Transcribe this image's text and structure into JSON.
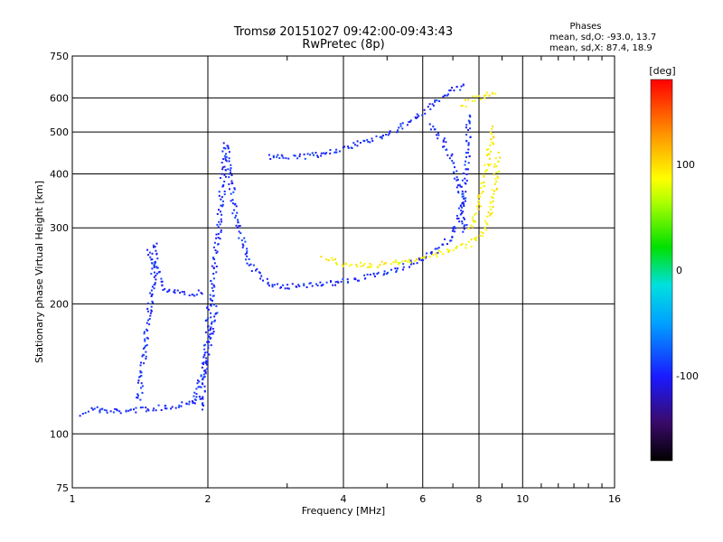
{
  "chart_data": {
    "type": "scatter",
    "title": "Tromsø 20151027 09:42:00-09:43:43",
    "subtitle": "RwPretec (8p)",
    "xlabel": "Frequency [MHz]",
    "ylabel": "Stationary phase Virtual Height [km]",
    "x_scale": "log",
    "y_scale": "log",
    "xlim": [
      1,
      16
    ],
    "ylim": [
      75,
      750
    ],
    "x_ticks": [
      1,
      2,
      4,
      6,
      8,
      10,
      16
    ],
    "x_tick_labels": [
      "1",
      "2",
      "4",
      "6",
      "8",
      "10",
      "16"
    ],
    "y_ticks": [
      75,
      100,
      200,
      300,
      400,
      500,
      600,
      750
    ],
    "y_tick_labels": [
      "75",
      "100",
      "200",
      "300",
      "400",
      "500",
      "600",
      "750"
    ],
    "grid": true,
    "phase_info": {
      "heading": "Phases",
      "line_o": "mean, sd,O: -93.0, 13.7",
      "line_x": "mean, sd,X: 87.4, 18.9"
    },
    "colorbar": {
      "label": "[deg]",
      "range": [
        -180,
        180
      ],
      "ticks": [
        100,
        0,
        -100
      ],
      "tick_labels": [
        "100",
        "0",
        "-100"
      ]
    },
    "series": [
      {
        "phase": -95,
        "segments": [
          [
            [
              1.05,
              112
            ],
            [
              1.1,
              115
            ],
            [
              1.2,
              113
            ],
            [
              1.35,
              114
            ],
            [
              1.5,
              115
            ],
            [
              1.65,
              116
            ],
            [
              1.8,
              119
            ],
            [
              1.95,
              122
            ]
          ],
          [
            [
              1.4,
              120
            ],
            [
              1.45,
              170
            ],
            [
              1.5,
              220
            ],
            [
              1.53,
              280
            ]
          ],
          [
            [
              1.48,
              270
            ],
            [
              1.53,
              240
            ],
            [
              1.6,
              215
            ],
            [
              1.8,
              212
            ],
            [
              1.95,
              214
            ]
          ],
          [
            [
              1.92,
              115
            ],
            [
              1.97,
              150
            ],
            [
              2.0,
              190
            ],
            [
              2.05,
              230
            ],
            [
              2.1,
              290
            ],
            [
              2.15,
              380
            ],
            [
              2.18,
              470
            ],
            [
              2.22,
              410
            ],
            [
              2.3,
              320
            ],
            [
              2.45,
              250
            ],
            [
              2.7,
              224
            ],
            [
              3.0,
              220
            ],
            [
              3.5,
              223
            ],
            [
              4.0,
              226
            ],
            [
              5.0,
              238
            ],
            [
              6.0,
              255
            ],
            [
              6.6,
              272
            ],
            [
              7.0,
              295
            ],
            [
              7.3,
              340
            ],
            [
              7.45,
              400
            ],
            [
              7.55,
              500
            ],
            [
              7.5,
              560
            ]
          ],
          [
            [
              2.7,
              440
            ],
            [
              3.0,
              438
            ],
            [
              3.5,
              445
            ],
            [
              4.0,
              460
            ],
            [
              4.8,
              490
            ],
            [
              5.5,
              525
            ],
            [
              6.0,
              560
            ],
            [
              6.5,
              600
            ],
            [
              7.0,
              630
            ],
            [
              7.5,
              640
            ]
          ],
          [
            [
              6.2,
              520
            ],
            [
              6.6,
              480
            ],
            [
              6.9,
              440
            ],
            [
              7.1,
              400
            ],
            [
              7.25,
              360
            ],
            [
              7.35,
              320
            ],
            [
              7.45,
              290
            ]
          ],
          [
            [
              1.85,
              118
            ],
            [
              1.95,
              140
            ],
            [
              2.02,
              170
            ],
            [
              2.08,
              200
            ]
          ]
        ]
      },
      {
        "phase": 90,
        "segments": [
          [
            [
              3.6,
              258
            ],
            [
              4.0,
              248
            ],
            [
              4.6,
              247
            ],
            [
              5.2,
              250
            ],
            [
              5.8,
              254
            ],
            [
              6.4,
              262
            ],
            [
              7.0,
              268
            ],
            [
              7.5,
              275
            ],
            [
              7.9,
              285
            ],
            [
              8.2,
              300
            ],
            [
              8.5,
              340
            ],
            [
              8.7,
              400
            ],
            [
              8.8,
              450
            ]
          ],
          [
            [
              7.3,
              580
            ],
            [
              7.8,
              600
            ],
            [
              8.2,
              610
            ],
            [
              8.5,
              615
            ],
            [
              8.7,
              620
            ]
          ],
          [
            [
              7.6,
              300
            ],
            [
              7.9,
              330
            ],
            [
              8.1,
              370
            ],
            [
              8.3,
              420
            ],
            [
              8.5,
              480
            ],
            [
              8.6,
              520
            ]
          ]
        ]
      }
    ]
  }
}
